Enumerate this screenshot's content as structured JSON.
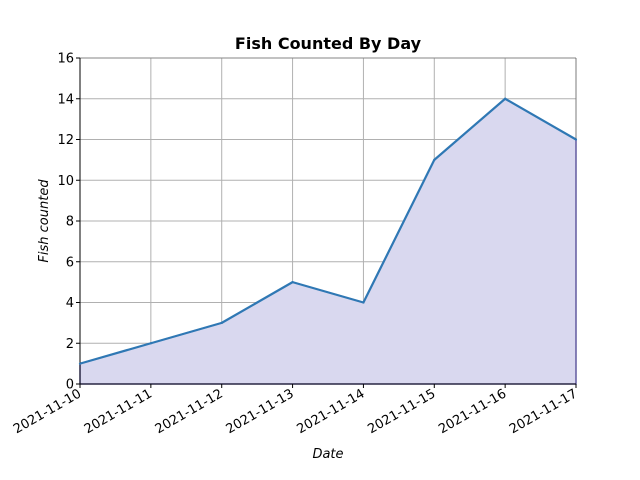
{
  "chart_data": {
    "type": "area",
    "title": "Fish Counted By Day",
    "xlabel": "Date",
    "ylabel": "Fish counted",
    "x": [
      "2021-11-10",
      "2021-11-11",
      "2021-11-12",
      "2021-11-13",
      "2021-11-14",
      "2021-11-15",
      "2021-11-16",
      "2021-11-17"
    ],
    "values": [
      1,
      2,
      3,
      5,
      4,
      11,
      14,
      12
    ],
    "ylim": [
      0,
      16
    ],
    "yticks": [
      0,
      2,
      4,
      6,
      8,
      10,
      12,
      14,
      16
    ],
    "grid": true,
    "legend": "none",
    "colors": {
      "line": "#2f78b4",
      "fill": "#d9d8ef",
      "fill_edge": "#7b72c8",
      "grid": "#b0b0b0"
    }
  }
}
